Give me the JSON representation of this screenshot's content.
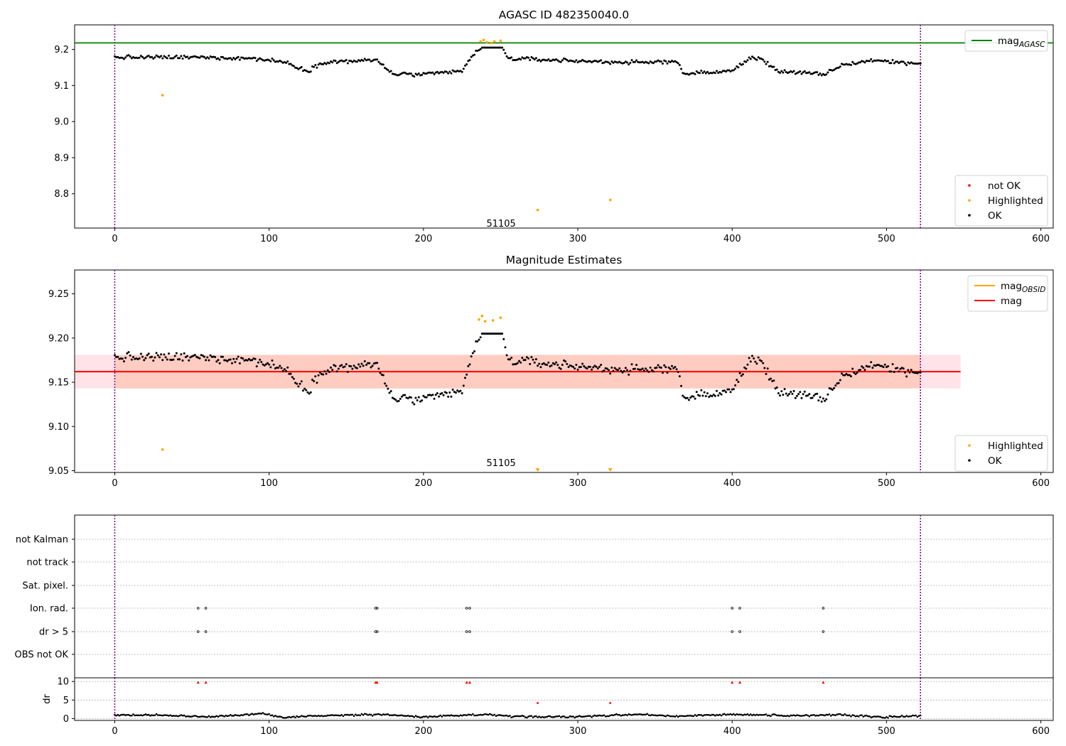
{
  "chart_data": [
    {
      "type": "scatter",
      "title": "AGASC ID 482350040.0",
      "xlim": [
        -26,
        608
      ],
      "ylim": [
        8.705,
        9.268
      ],
      "xticks": [
        0,
        100,
        200,
        300,
        400,
        500,
        600
      ],
      "yticks": [
        8.8,
        8.9,
        9.0,
        9.1,
        9.2
      ],
      "vlines": [
        0,
        522
      ],
      "hline": {
        "name": "mag_AGASC",
        "value": 9.218,
        "color": "#008000"
      },
      "annotation": {
        "text": "51105",
        "x": 250,
        "y": 8.735
      },
      "series": [
        {
          "name": "not OK",
          "color": "#ff0000",
          "points": []
        },
        {
          "name": "Highlighted",
          "color": "#ffa500",
          "points": [
            [
              31,
              9.073
            ],
            [
              237,
              9.222
            ],
            [
              239,
              9.226
            ],
            [
              241,
              9.22
            ],
            [
              244,
              9.218
            ],
            [
              246,
              9.222
            ],
            [
              250,
              9.224
            ],
            [
              274,
              8.755
            ],
            [
              321,
              8.783
            ]
          ]
        },
        {
          "name": "OK",
          "color": "#000000",
          "trend": [
            [
              0,
              9.178
            ],
            [
              30,
              9.178
            ],
            [
              60,
              9.178
            ],
            [
              90,
              9.175
            ],
            [
              110,
              9.165
            ],
            [
              125,
              9.14
            ],
            [
              135,
              9.165
            ],
            [
              170,
              9.17
            ],
            [
              180,
              9.132
            ],
            [
              200,
              9.13
            ],
            [
              225,
              9.14
            ],
            [
              232,
              9.185
            ],
            [
              240,
              9.21
            ],
            [
              250,
              9.21
            ],
            [
              255,
              9.175
            ],
            [
              300,
              9.168
            ],
            [
              340,
              9.163
            ],
            [
              365,
              9.168
            ],
            [
              368,
              9.132
            ],
            [
              400,
              9.14
            ],
            [
              412,
              9.178
            ],
            [
              420,
              9.17
            ],
            [
              430,
              9.14
            ],
            [
              460,
              9.13
            ],
            [
              470,
              9.155
            ],
            [
              490,
              9.17
            ],
            [
              522,
              9.16
            ]
          ]
        }
      ],
      "legends": [
        {
          "position": "upper right",
          "items": [
            {
              "label": "mag",
              "subscript": "AGASC",
              "color": "#008000",
              "kind": "line"
            }
          ]
        },
        {
          "position": "lower right",
          "items": [
            {
              "label": "not OK",
              "color": "#ff0000",
              "kind": "dot"
            },
            {
              "label": "Highlighted",
              "color": "#ffa500",
              "kind": "dot"
            },
            {
              "label": "OK",
              "color": "#000000",
              "kind": "dot"
            }
          ]
        }
      ]
    },
    {
      "type": "scatter",
      "title": "Magnitude Estimates",
      "xlim": [
        -26,
        608
      ],
      "ylim": [
        9.048,
        9.277
      ],
      "xticks": [
        0,
        100,
        200,
        300,
        400,
        500,
        600
      ],
      "yticks": [
        9.05,
        9.1,
        9.15,
        9.2,
        9.25
      ],
      "vlines": [
        0,
        522
      ],
      "mag_line": {
        "name": "mag",
        "value": 9.162,
        "color": "#ff0000",
        "x_range": [
          -26,
          548
        ]
      },
      "bands": [
        {
          "y_range": [
            9.143,
            9.181
          ],
          "x_range": [
            -26,
            548
          ],
          "color": "#ffc0cb",
          "opacity": 0.45
        },
        {
          "y_range": [
            9.143,
            9.181
          ],
          "x_range": [
            0,
            522
          ],
          "color": "#ffa07a",
          "opacity": 0.35
        }
      ],
      "annotation": {
        "text": "51105",
        "x": 250,
        "y": 9.055
      },
      "series": [
        {
          "name": "Highlighted",
          "color": "#ffa500",
          "points": [
            [
              31,
              9.074
            ],
            [
              236,
              9.221
            ],
            [
              238,
              9.225
            ],
            [
              240,
              9.219
            ],
            [
              245,
              9.22
            ],
            [
              250,
              9.223
            ]
          ],
          "markers_below_axis": [
            [
              274,
              9.05
            ],
            [
              321,
              9.05
            ]
          ]
        },
        {
          "name": "OK",
          "color": "#000000",
          "trend": [
            [
              0,
              9.178
            ],
            [
              30,
              9.178
            ],
            [
              60,
              9.178
            ],
            [
              90,
              9.175
            ],
            [
              110,
              9.165
            ],
            [
              125,
              9.14
            ],
            [
              135,
              9.165
            ],
            [
              170,
              9.17
            ],
            [
              180,
              9.132
            ],
            [
              200,
              9.13
            ],
            [
              225,
              9.14
            ],
            [
              232,
              9.185
            ],
            [
              240,
              9.21
            ],
            [
              250,
              9.21
            ],
            [
              255,
              9.175
            ],
            [
              300,
              9.168
            ],
            [
              340,
              9.163
            ],
            [
              365,
              9.168
            ],
            [
              368,
              9.132
            ],
            [
              400,
              9.14
            ],
            [
              412,
              9.178
            ],
            [
              420,
              9.17
            ],
            [
              430,
              9.14
            ],
            [
              460,
              9.13
            ],
            [
              470,
              9.155
            ],
            [
              490,
              9.17
            ],
            [
              522,
              9.16
            ]
          ]
        }
      ],
      "legends": [
        {
          "position": "upper right",
          "items": [
            {
              "label": "mag",
              "subscript": "OBSID",
              "color": "#ffa500",
              "kind": "line"
            },
            {
              "label": "mag",
              "color": "#ff0000",
              "kind": "line"
            }
          ]
        },
        {
          "position": "lower right",
          "items": [
            {
              "label": "Highlighted",
              "color": "#ffa500",
              "kind": "dot"
            },
            {
              "label": "OK",
              "color": "#000000",
              "kind": "dot"
            }
          ]
        }
      ]
    },
    {
      "type": "scatter",
      "title": "",
      "xlim": [
        -26,
        608
      ],
      "ylim": [
        0,
        1
      ],
      "vlines": [
        0,
        522
      ],
      "category_rows": [
        "not Kalman",
        "not track",
        "Sat. pixel.",
        "Ion. rad.",
        "dr > 5",
        "OBS not OK"
      ],
      "flags": {
        "Ion. rad.": [
          54,
          59,
          169,
          170,
          228,
          230,
          400,
          405,
          459
        ],
        "dr > 5": [
          54,
          59,
          169,
          170,
          228,
          230,
          400,
          405,
          459
        ]
      },
      "grid": true
    },
    {
      "type": "scatter",
      "title": "",
      "ylabel": "dr",
      "xlim": [
        -26,
        608
      ],
      "ylim": [
        -0.5,
        11
      ],
      "xticks": [
        0,
        100,
        200,
        300,
        400,
        500,
        600
      ],
      "yticks": [
        0,
        5,
        10
      ],
      "vlines": [
        0,
        522
      ],
      "capped_points": {
        "color": "#ff0000",
        "y": 9.8,
        "x": [
          54,
          59,
          169,
          170,
          228,
          230,
          400,
          405,
          459
        ]
      },
      "extra_red_points": [
        [
          274,
          4.2
        ],
        [
          321,
          4.2
        ]
      ],
      "series": [
        {
          "name": "dr",
          "color": "#000000",
          "trend": [
            [
              0,
              1.0
            ],
            [
              30,
              0.9
            ],
            [
              60,
              0.5
            ],
            [
              95,
              1.3
            ],
            [
              110,
              0.3
            ],
            [
              130,
              0.8
            ],
            [
              175,
              1.1
            ],
            [
              200,
              0.4
            ],
            [
              240,
              1.1
            ],
            [
              260,
              0.5
            ],
            [
              300,
              0.5
            ],
            [
              340,
              1.2
            ],
            [
              360,
              0.6
            ],
            [
              400,
              1.1
            ],
            [
              440,
              0.8
            ],
            [
              470,
              1.0
            ],
            [
              500,
              0.4
            ],
            [
              522,
              0.8
            ]
          ]
        }
      ],
      "grid": true
    }
  ]
}
